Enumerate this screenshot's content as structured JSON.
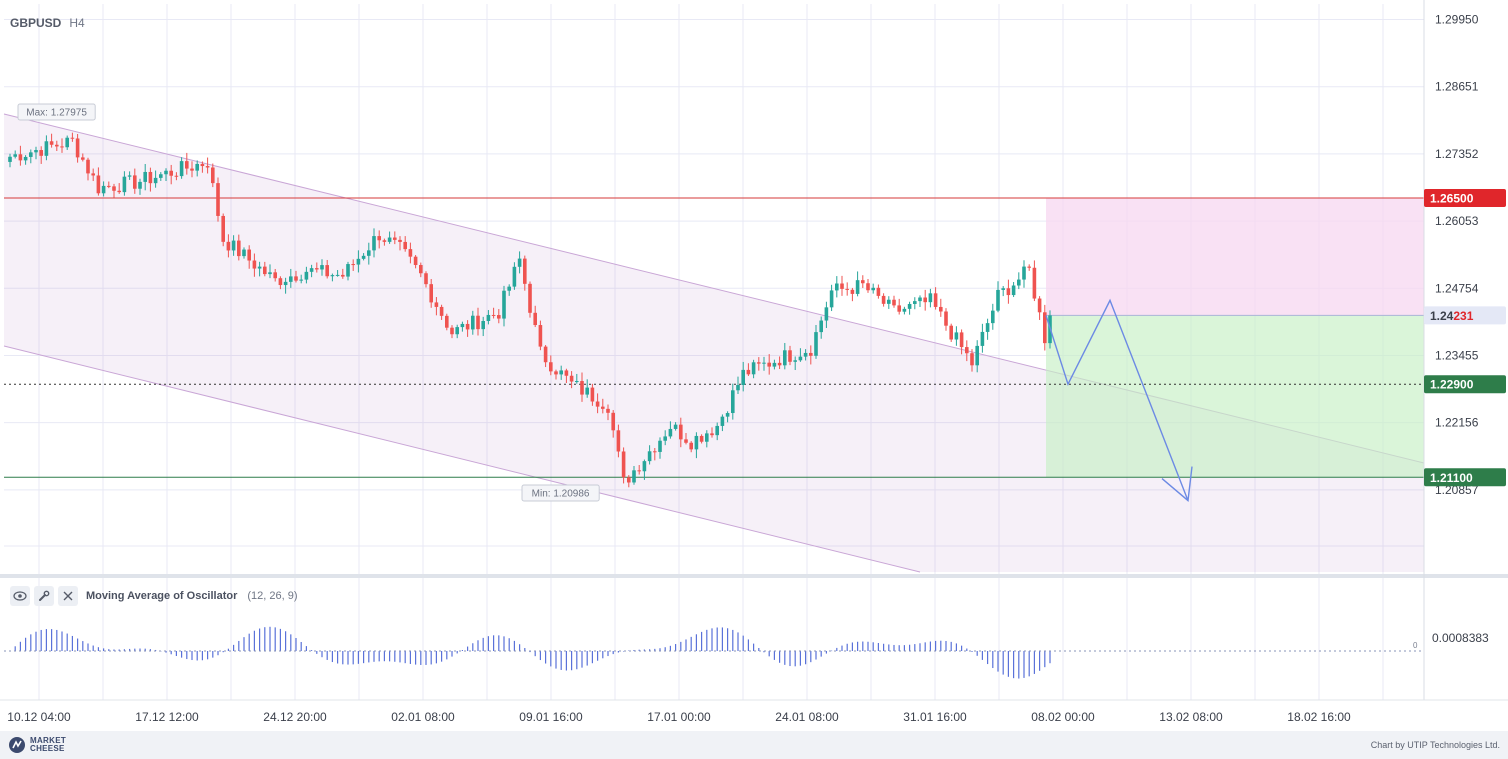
{
  "header": {
    "symbol": "GBPUSD",
    "timeframe": "H4"
  },
  "price_axis": {
    "ticks": [
      "1.29950",
      "1.28651",
      "1.27352",
      "1.26053",
      "1.24754",
      "1.23455",
      "1.22156",
      "1.20857"
    ],
    "ymin": 1.1925,
    "ymax": 1.3025
  },
  "levels": {
    "take_profit_upper": {
      "label": "1.26500",
      "value": 1.265,
      "color": "#e0262b"
    },
    "current": {
      "prefix": "1.24",
      "suffix": "231",
      "value": 1.24231
    },
    "entry": {
      "label": "1.22900",
      "value": 1.229,
      "color": "#2e7d4a"
    },
    "target": {
      "label": "1.21100",
      "value": 1.211,
      "color": "#2e7d4a"
    }
  },
  "annotations": {
    "max": "Max: 1.27975",
    "min": "Min: 1.20986"
  },
  "time_axis": [
    "10.12 04:00",
    "17.12 12:00",
    "24.12 20:00",
    "02.01 08:00",
    "09.01 16:00",
    "17.01 00:00",
    "24.01 08:00",
    "31.01 16:00",
    "08.02 00:00",
    "13.02 08:00",
    "18.02 16:00"
  ],
  "indicator": {
    "name": "Moving Average of Oscillator",
    "params": "(12, 26, 9)",
    "value_label": "0.0008383",
    "zero_label": "0",
    "icons": [
      "eye-icon",
      "wrench-icon",
      "close-icon"
    ]
  },
  "footer": {
    "logo_line1": "MARKET",
    "logo_line2": "CHEESE",
    "credit": "Chart by UTIP Technologies Ltd."
  },
  "colors": {
    "up": "#26a69a",
    "down": "#ef5350",
    "channel": "#c9a6d6",
    "forecast": "#6c8ae4",
    "grid": "#e8e9f5"
  },
  "chart_data": {
    "type": "candlestick",
    "symbol": "GBPUSD",
    "timeframe": "H4",
    "anchors": [
      {
        "t": "10.12 04:00",
        "close": 1.273
      },
      {
        "t": "12.12",
        "close": 1.276
      },
      {
        "t": "13.12",
        "close": 1.267
      },
      {
        "t": "16.12",
        "close": 1.268
      },
      {
        "t": "17.12 12:00",
        "close": 1.27
      },
      {
        "t": "18.12",
        "close": 1.272
      },
      {
        "t": "19.12",
        "close": 1.257
      },
      {
        "t": "20.12",
        "close": 1.253
      },
      {
        "t": "23.12",
        "close": 1.249
      },
      {
        "t": "24.12 20:00",
        "close": 1.251
      },
      {
        "t": "27.12",
        "close": 1.25
      },
      {
        "t": "30.12",
        "close": 1.258
      },
      {
        "t": "31.12",
        "close": 1.255
      },
      {
        "t": "02.01 08:00",
        "close": 1.25
      },
      {
        "t": "03.01",
        "close": 1.239
      },
      {
        "t": "06.01",
        "close": 1.243
      },
      {
        "t": "07.01",
        "close": 1.253
      },
      {
        "t": "08.01",
        "close": 1.235
      },
      {
        "t": "09.01 16:00",
        "close": 1.229
      },
      {
        "t": "10.01",
        "close": 1.225
      },
      {
        "t": "13.01",
        "close": 1.2099
      },
      {
        "t": "14.01",
        "close": 1.221
      },
      {
        "t": "15.01",
        "close": 1.218
      },
      {
        "t": "17.01 00:00",
        "close": 1.221
      },
      {
        "t": "20.01",
        "close": 1.231
      },
      {
        "t": "22.01",
        "close": 1.234
      },
      {
        "t": "23.01",
        "close": 1.236
      },
      {
        "t": "24.01 08:00",
        "close": 1.247
      },
      {
        "t": "27.01",
        "close": 1.248
      },
      {
        "t": "28.01",
        "close": 1.243
      },
      {
        "t": "30.01",
        "close": 1.245
      },
      {
        "t": "31.01 16:00",
        "close": 1.233
      },
      {
        "t": "03.02",
        "close": 1.246
      },
      {
        "t": "05.02",
        "close": 1.251
      },
      {
        "t": "06.02",
        "close": 1.238
      },
      {
        "t": "07.02",
        "close": 1.2423
      }
    ],
    "max": 1.27975,
    "min": 1.20986,
    "current": 1.24231,
    "horizontal_levels": [
      1.265,
      1.229,
      1.211
    ],
    "forecast_path": [
      1.2423,
      1.229,
      1.2452,
      1.2065
    ],
    "indicator": {
      "name": "Moving Average of Oscillator",
      "params": [
        12,
        26,
        9
      ],
      "last": 0.0008383
    }
  }
}
